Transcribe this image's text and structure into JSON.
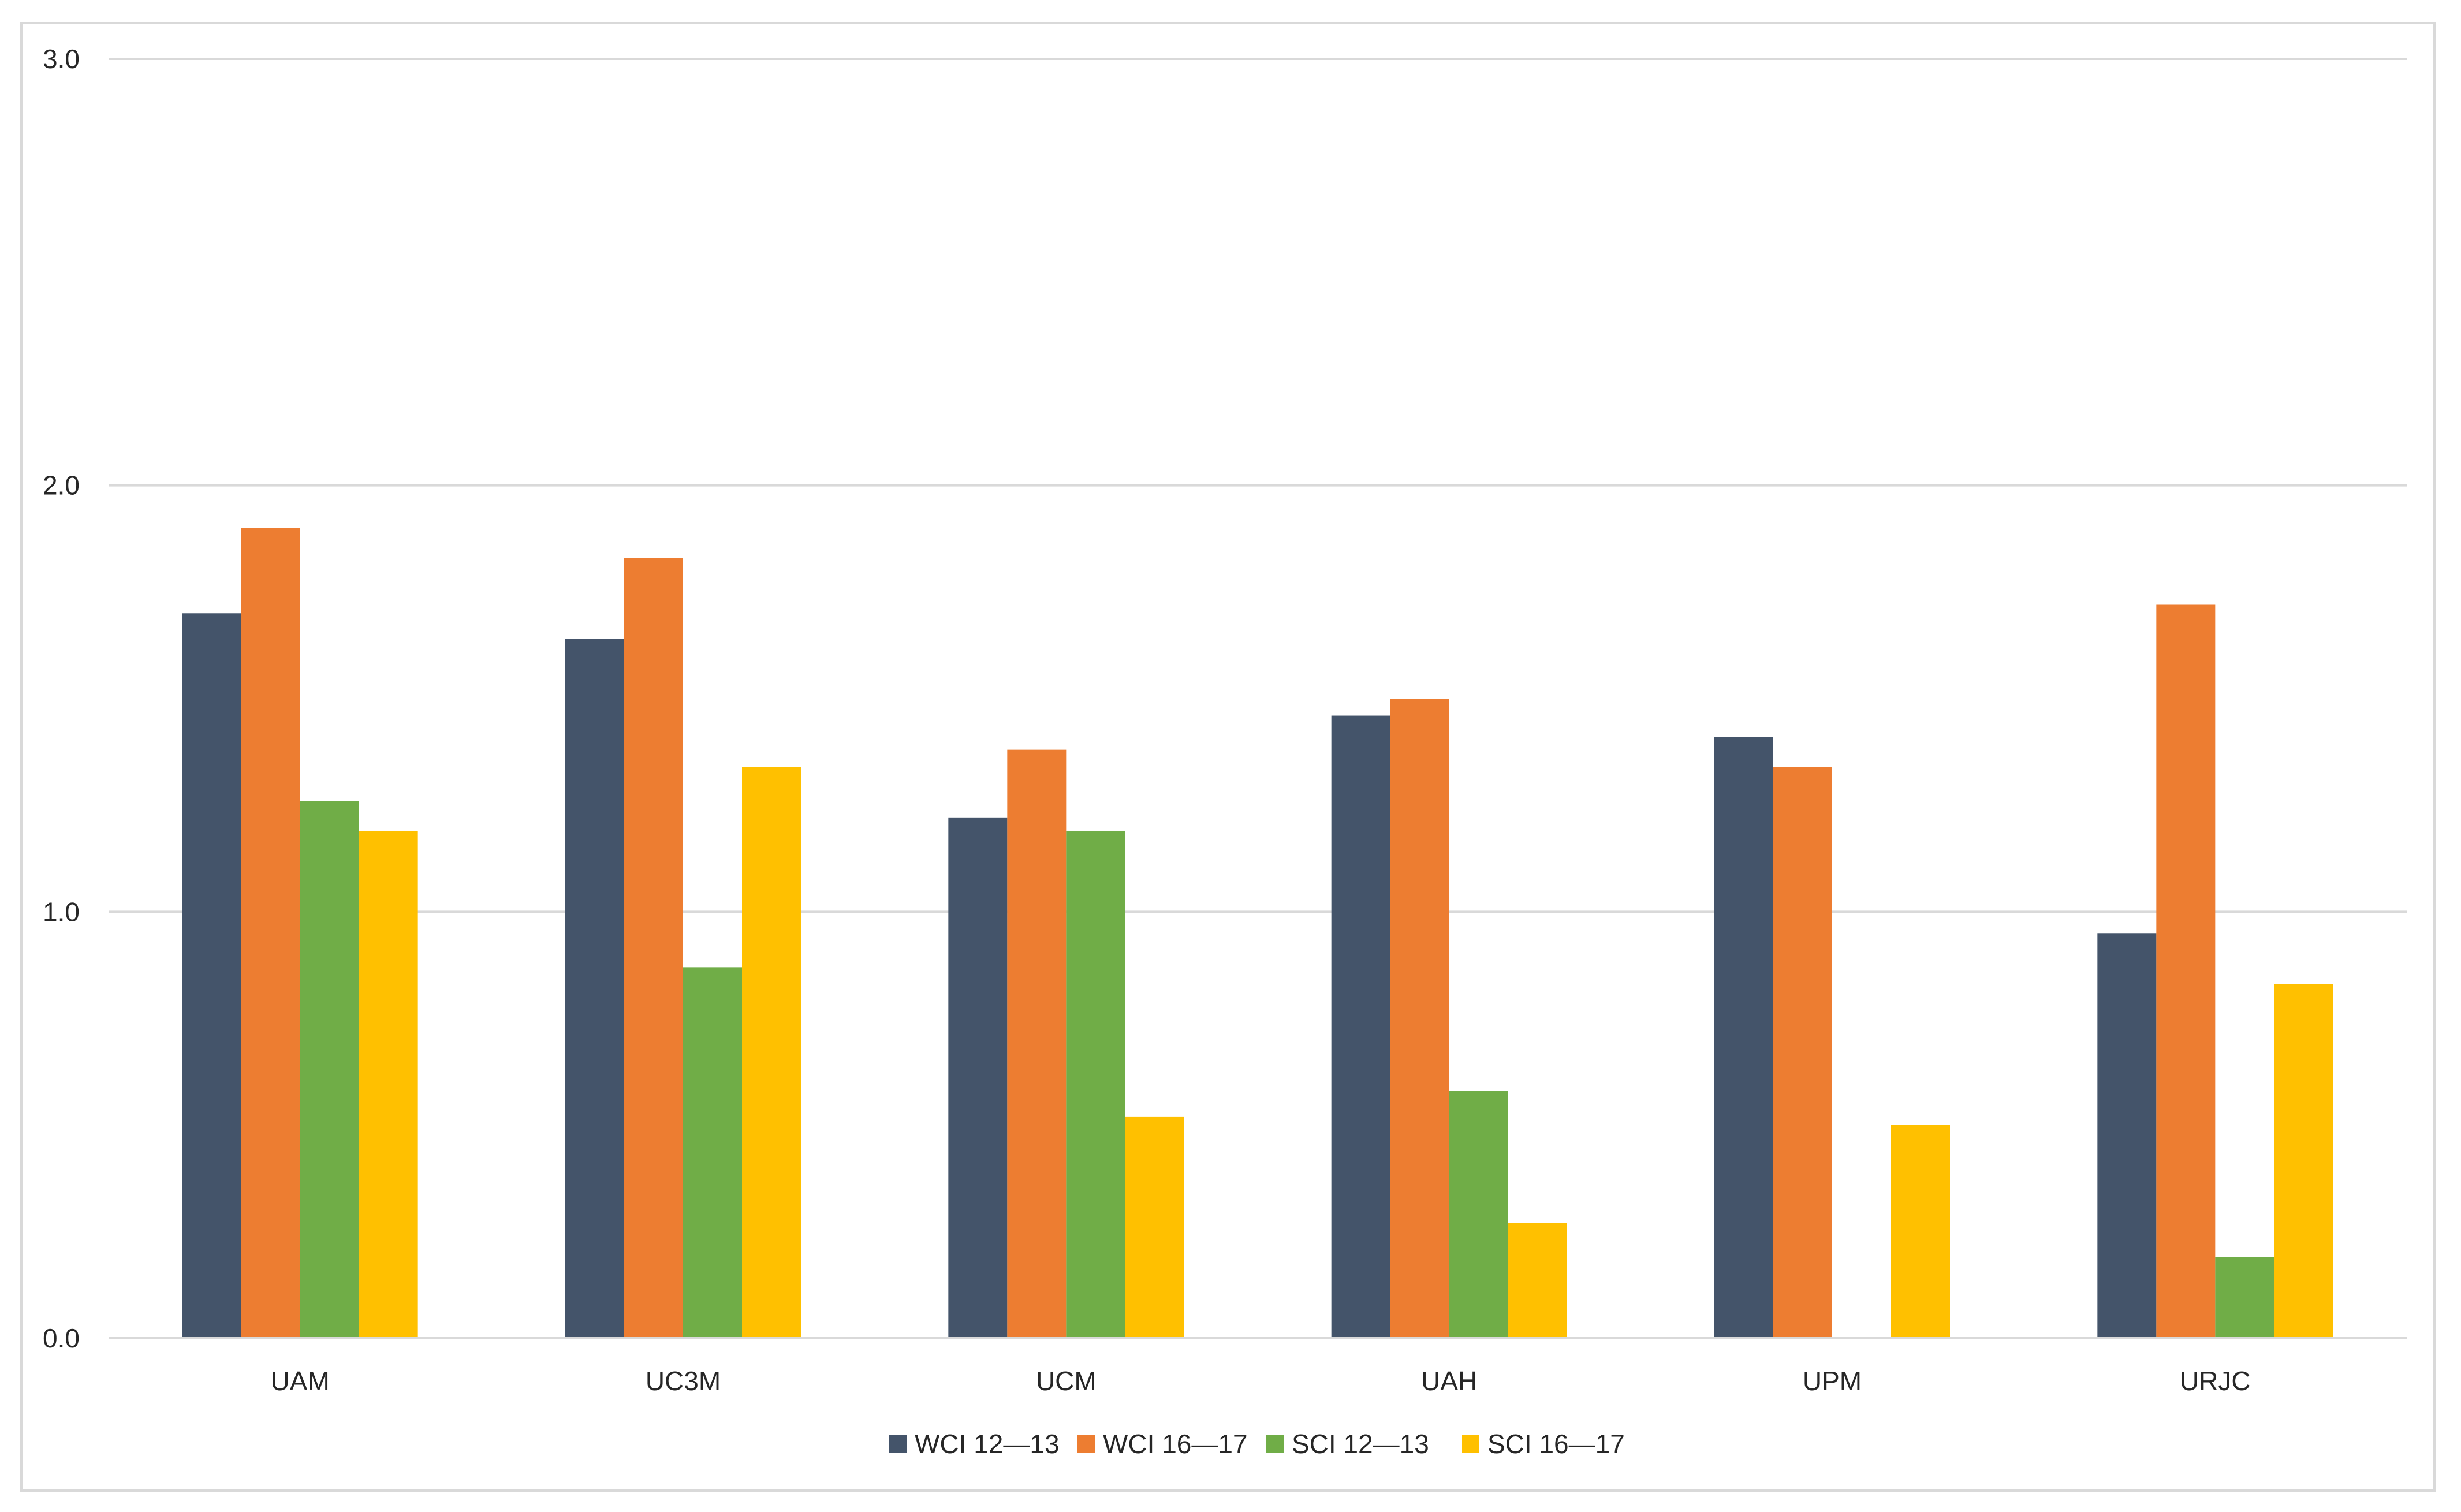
{
  "chart_data": {
    "type": "bar",
    "title": "",
    "xlabel": "",
    "ylabel": "",
    "ylim": [
      0,
      3
    ],
    "yticks": [
      "0.0",
      "1.0",
      "2.0",
      "3.0"
    ],
    "grid": true,
    "legend_position": "bottom",
    "categories": [
      "UAM",
      "UC3M",
      "UCM",
      "UAH",
      "UPM",
      "URJC"
    ],
    "series": [
      {
        "name": "WCI 12—13",
        "color": "#44546a",
        "values": [
          1.7,
          1.64,
          1.22,
          1.46,
          1.41,
          0.95
        ]
      },
      {
        "name": "WCI 16—17",
        "color": "#ed7d31",
        "values": [
          1.9,
          1.83,
          1.38,
          1.5,
          1.34,
          1.72
        ]
      },
      {
        "name": "SCI 12—13",
        "color": "#70ad47",
        "values": [
          1.26,
          0.87,
          1.19,
          0.58,
          null,
          0.19
        ]
      },
      {
        "name": "SCI 16—17",
        "color": "#ffc000",
        "values": [
          1.19,
          1.34,
          0.52,
          0.27,
          0.5,
          0.83
        ]
      }
    ]
  }
}
